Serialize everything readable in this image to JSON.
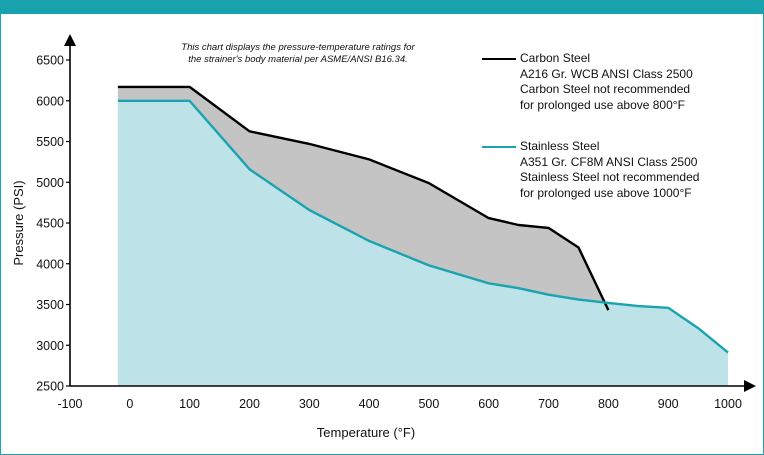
{
  "chart_data": {
    "type": "area",
    "title": "",
    "xlabel": "Temperature (°F)",
    "ylabel": "Pressure (PSI)",
    "xlim": [
      -100,
      1000
    ],
    "ylim": [
      2500,
      6500
    ],
    "x_ticks": [
      -100,
      0,
      100,
      200,
      300,
      400,
      500,
      600,
      700,
      800,
      900,
      1000
    ],
    "y_ticks": [
      2500,
      3000,
      3500,
      4000,
      4500,
      5000,
      5500,
      6000,
      6500
    ],
    "annotation": "This chart displays the pressure-temperature ratings for the strainer's body material per ASME/ANSI B16.34.",
    "legend_position": "top-right",
    "series": [
      {
        "name": "Carbon Steel",
        "legend_lines": [
          "Carbon Steel",
          "A216 Gr. WCB ANSI Class 2500",
          "Carbon Steel not recommended",
          "for prolonged use above 800°F"
        ],
        "color": "#000000",
        "fill": "#c4c4c4",
        "x": [
          -20,
          100,
          200,
          300,
          400,
          500,
          600,
          650,
          700,
          750,
          800
        ],
        "y": [
          6170,
          6170,
          5625,
          5470,
          5280,
          4990,
          4560,
          4475,
          4440,
          4200,
          3430
        ]
      },
      {
        "name": "Stainless Steel",
        "legend_lines": [
          "Stainless Steel",
          "A351 Gr. CF8M ANSI Class 2500",
          "Stainless Steel not recommended",
          "for prolonged use above 1000°F"
        ],
        "color": "#1aa3b0",
        "fill": "#bde3e8",
        "x": [
          -20,
          100,
          200,
          300,
          400,
          500,
          600,
          650,
          700,
          750,
          800,
          850,
          900,
          950,
          1000
        ],
        "y": [
          6000,
          6000,
          5160,
          4660,
          4280,
          3980,
          3760,
          3700,
          3620,
          3560,
          3520,
          3480,
          3460,
          3210,
          2910
        ]
      }
    ]
  }
}
